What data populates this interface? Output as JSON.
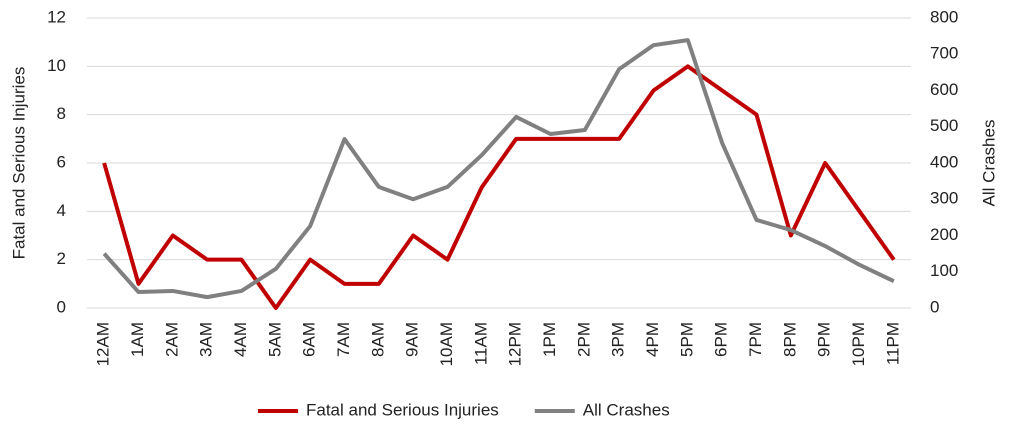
{
  "chart_data": {
    "type": "line",
    "categories": [
      "12AM",
      "1AM",
      "2AM",
      "3AM",
      "4AM",
      "5AM",
      "6AM",
      "7AM",
      "8AM",
      "9AM",
      "10AM",
      "11AM",
      "12PM",
      "1PM",
      "2PM",
      "3PM",
      "4PM",
      "5PM",
      "6PM",
      "7PM",
      "8PM",
      "9PM",
      "10PM",
      "11PM"
    ],
    "series": [
      {
        "name": "Fatal and Serious Injuries",
        "color": "#c00000",
        "axis": "y",
        "values": [
          6,
          1,
          3,
          2,
          2,
          0,
          2,
          1,
          1,
          3,
          2,
          5,
          7,
          7,
          7,
          7,
          9,
          10,
          9,
          8,
          3,
          6,
          4,
          2
        ]
      },
      {
        "name": "All Crashes",
        "color": "#808080",
        "axis": "y2",
        "values": [
          150,
          44,
          47,
          30,
          47,
          108,
          226,
          466,
          334,
          300,
          334,
          422,
          527,
          480,
          491,
          659,
          725,
          739,
          455,
          243,
          215,
          171,
          119,
          74
        ]
      }
    ],
    "ylabel": "Fatal and Serious Injuries",
    "y2label": "All Crashes",
    "ylim": [
      0,
      12
    ],
    "yticks": [
      0,
      2,
      4,
      6,
      8,
      10,
      12
    ],
    "y2lim": [
      0,
      800
    ],
    "y2ticks": [
      0,
      100,
      200,
      300,
      400,
      500,
      600,
      700,
      800
    ],
    "grid": true,
    "legend": "bottom"
  }
}
